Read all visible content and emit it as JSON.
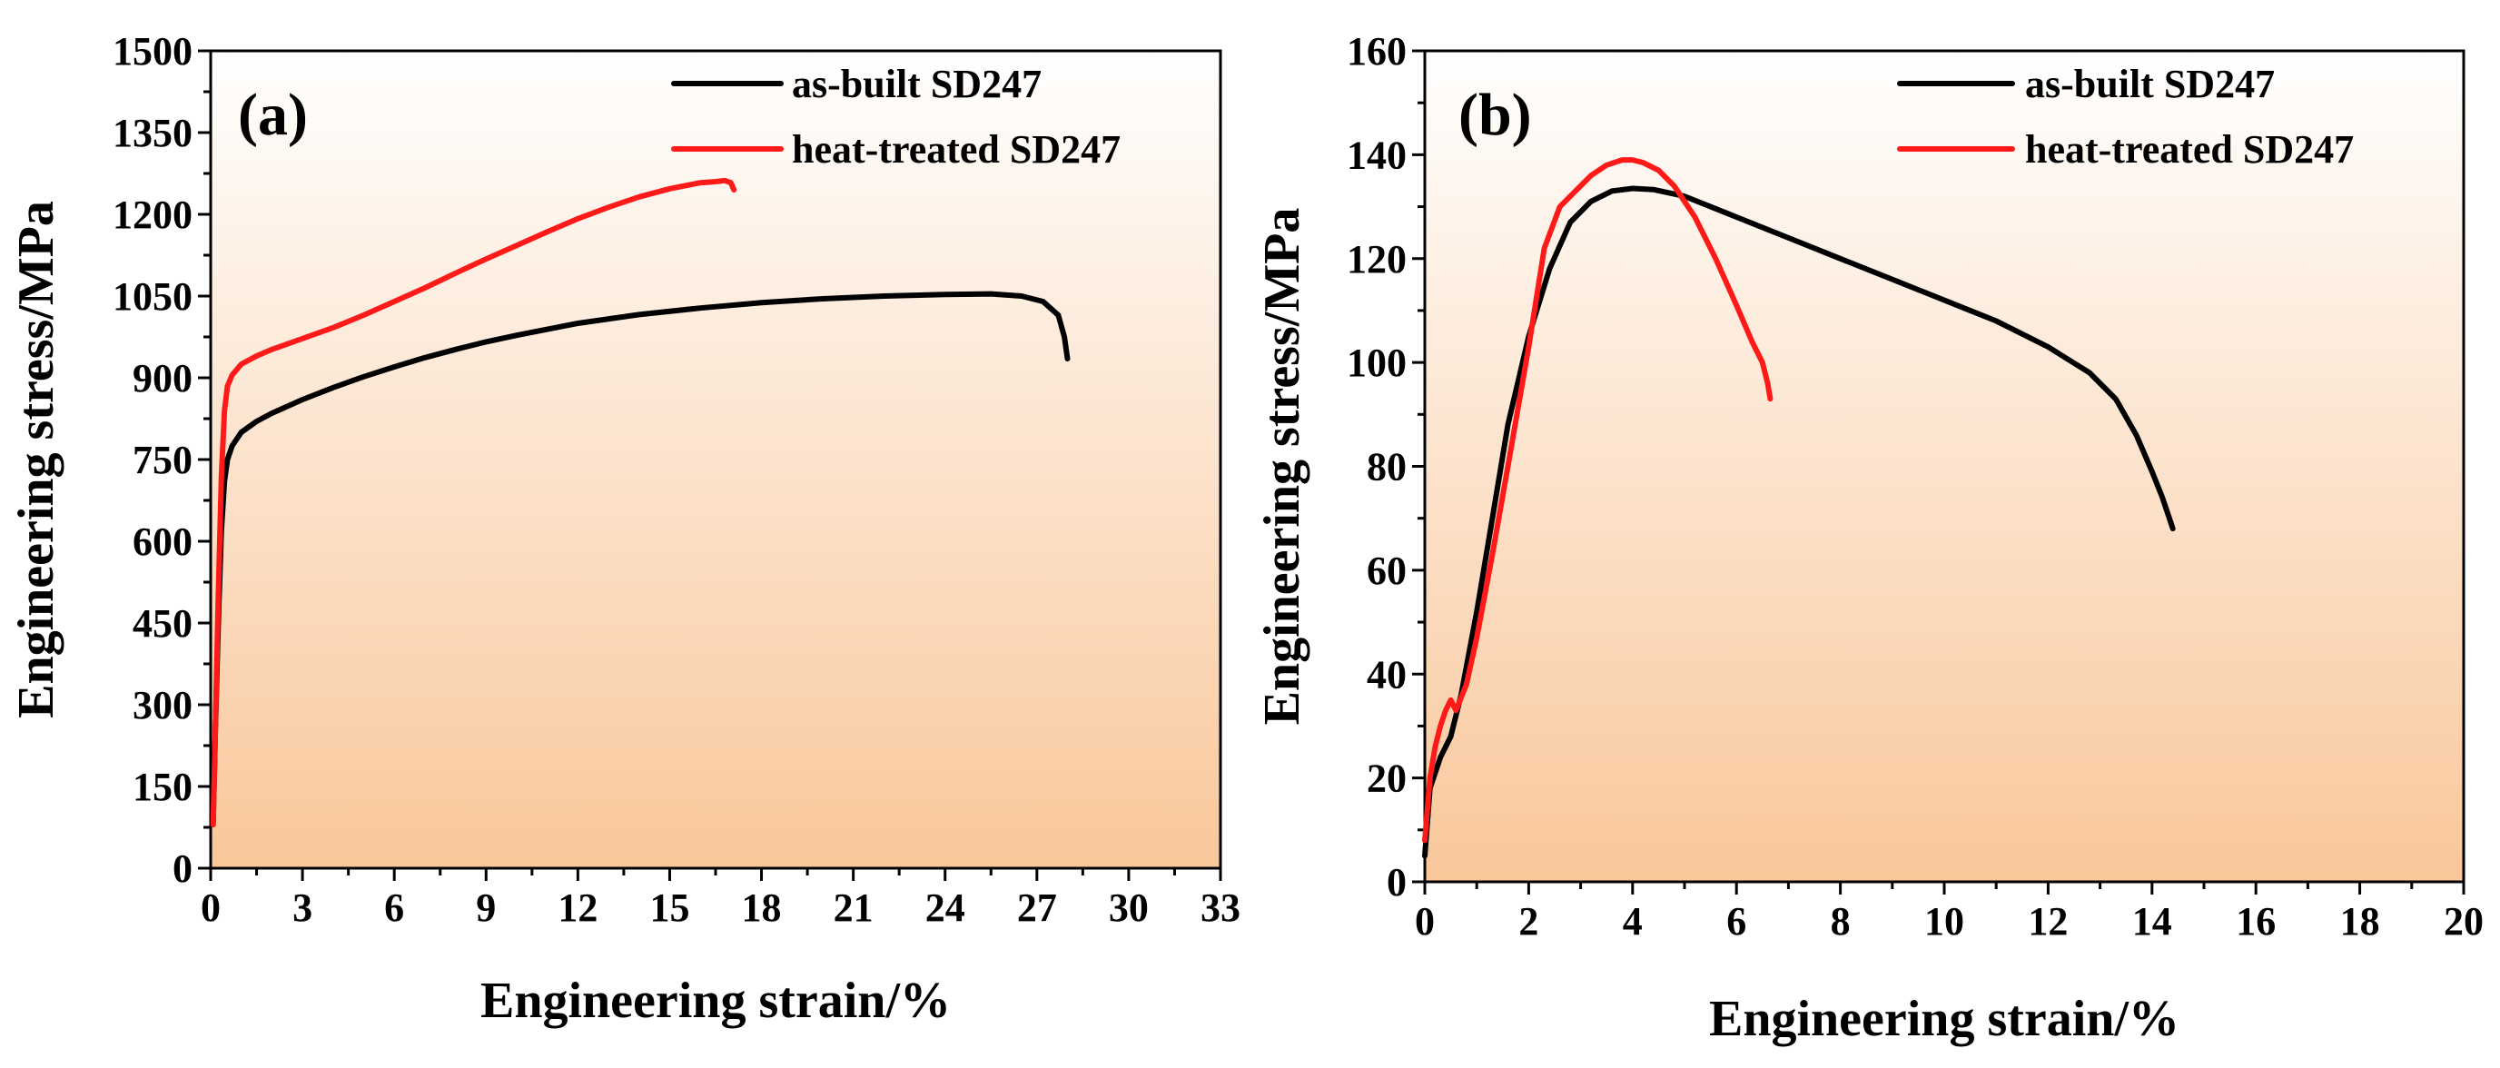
{
  "colors": {
    "as_built": "#000000",
    "heat_treated": "#ff1a1a",
    "bg_top": "#ffffff",
    "bg_bottom": "#f9c79a"
  },
  "chart_data": [
    {
      "type": "line",
      "panel_label": "(a)",
      "xlabel": "Engineering strain/%",
      "ylabel": "Engineering stress/MPa",
      "xlim": [
        0,
        33
      ],
      "ylim": [
        0,
        1500
      ],
      "xticks": [
        0,
        3,
        6,
        9,
        12,
        15,
        18,
        21,
        24,
        27,
        30,
        33
      ],
      "yticks": [
        0,
        150,
        300,
        450,
        600,
        750,
        900,
        1050,
        1200,
        1350,
        1500
      ],
      "legend_position": "top-right",
      "series": [
        {
          "name": "as-built SD247",
          "color": "#000000",
          "x": [
            0.08,
            0.15,
            0.25,
            0.35,
            0.45,
            0.55,
            0.7,
            1,
            1.5,
            2,
            3,
            4,
            5,
            6,
            7,
            8,
            9,
            10,
            12,
            14,
            16,
            18,
            20,
            22,
            24,
            25.5,
            26.5,
            27.2,
            27.7,
            27.9,
            28.0
          ],
          "y": [
            80,
            250,
            450,
            620,
            710,
            750,
            775,
            800,
            820,
            835,
            860,
            882,
            902,
            920,
            937,
            952,
            966,
            978,
            1000,
            1016,
            1028,
            1038,
            1045,
            1050,
            1053,
            1054,
            1050,
            1040,
            1015,
            975,
            935
          ]
        },
        {
          "name": "heat-treated SD247",
          "color": "#ff1a1a",
          "x": [
            0.08,
            0.15,
            0.25,
            0.35,
            0.45,
            0.55,
            0.7,
            1,
            1.5,
            2,
            3,
            4,
            5,
            6,
            7,
            8,
            9,
            10,
            11,
            12,
            13,
            14,
            15,
            16,
            16.5,
            16.8,
            17.0,
            17.1
          ],
          "y": [
            80,
            250,
            500,
            720,
            840,
            885,
            905,
            925,
            940,
            952,
            972,
            992,
            1015,
            1040,
            1065,
            1092,
            1118,
            1143,
            1168,
            1192,
            1213,
            1232,
            1247,
            1258,
            1260,
            1262,
            1258,
            1245
          ]
        }
      ]
    },
    {
      "type": "line",
      "panel_label": "(b)",
      "xlabel": "Engineering strain/%",
      "ylabel": "Engineering stress/MPa",
      "xlim": [
        0,
        20
      ],
      "ylim": [
        0,
        160
      ],
      "xticks": [
        0,
        2,
        4,
        6,
        8,
        10,
        12,
        14,
        16,
        18,
        20
      ],
      "yticks": [
        0,
        20,
        40,
        60,
        80,
        100,
        120,
        140,
        160
      ],
      "legend_position": "top-right",
      "series": [
        {
          "name": "as-built SD247",
          "color": "#000000",
          "x": [
            0,
            0.1,
            0.3,
            0.5,
            0.7,
            1.0,
            1.3,
            1.6,
            2.0,
            2.4,
            2.8,
            3.2,
            3.6,
            4.0,
            4.4,
            5.0,
            6.0,
            7.0,
            8.0,
            9.0,
            10.0,
            11.0,
            12.0,
            12.8,
            13.3,
            13.7,
            14.0,
            14.2,
            14.3,
            14.4
          ],
          "y": [
            5,
            18,
            24,
            28,
            36,
            52,
            70,
            88,
            105,
            118,
            127,
            131,
            133,
            133.5,
            133.3,
            132,
            128,
            124,
            120,
            116,
            112,
            108,
            103,
            98,
            93,
            86,
            79,
            74,
            71,
            68
          ]
        },
        {
          "name": "heat-treated SD247",
          "color": "#ff1a1a",
          "x": [
            0,
            0.1,
            0.2,
            0.3,
            0.4,
            0.5,
            0.6,
            0.8,
            1.0,
            1.3,
            1.6,
            2.0,
            2.3,
            2.6,
            2.9,
            3.2,
            3.5,
            3.8,
            4.0,
            4.2,
            4.5,
            4.8,
            5.2,
            5.6,
            6.0,
            6.3,
            6.5,
            6.6,
            6.65
          ],
          "y": [
            8,
            20,
            26,
            30,
            33,
            35,
            33,
            38,
            47,
            63,
            80,
            103,
            122,
            130,
            133,
            136,
            138,
            139,
            139,
            138.5,
            137,
            134,
            128,
            120,
            111,
            104,
            100,
            96,
            93
          ]
        }
      ]
    }
  ]
}
